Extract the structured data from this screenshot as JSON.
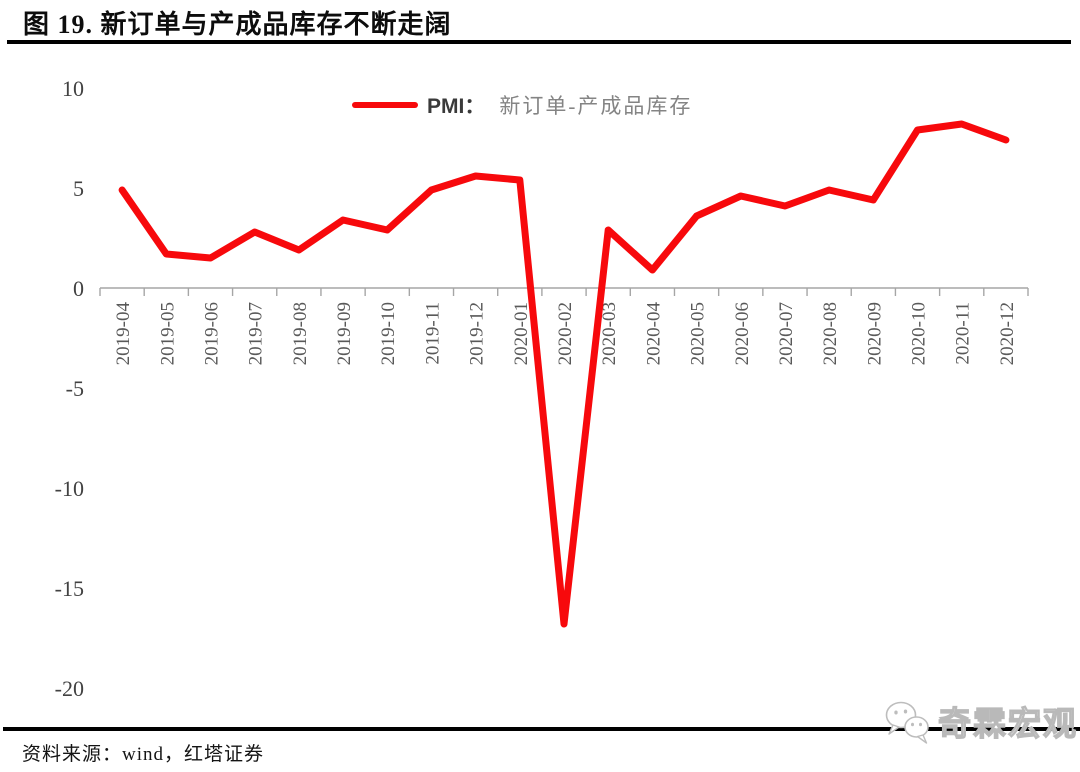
{
  "header": {
    "title": "图 19. 新订单与产成品库存不断走阔"
  },
  "legend": {
    "prefix": "PMI：",
    "series": "新订单-产成品库存"
  },
  "footer": {
    "source": "资料来源：wind，红塔证券"
  },
  "watermark": {
    "icon": "wechat-icon",
    "text": "奇霖宏观"
  },
  "chart_data": {
    "type": "line",
    "title": "图 19. 新订单与产成品库存不断走阔",
    "legend_label": "PMI：新订单-产成品库存",
    "legend_position": "top-center",
    "grid": false,
    "categories": [
      "2019-04",
      "2019-05",
      "2019-06",
      "2019-07",
      "2019-08",
      "2019-09",
      "2019-10",
      "2019-11",
      "2019-12",
      "2020-01",
      "2020-02",
      "2020-03",
      "2020-04",
      "2020-05",
      "2020-06",
      "2020-07",
      "2020-08",
      "2020-09",
      "2020-10",
      "2020-11",
      "2020-12"
    ],
    "series": [
      {
        "name": "PMI：新订单-产成品库存",
        "color": "#F7090C",
        "values": [
          4.9,
          1.7,
          1.5,
          2.8,
          1.9,
          3.4,
          2.9,
          4.9,
          5.6,
          5.4,
          -16.8,
          2.9,
          0.9,
          3.6,
          4.6,
          4.1,
          4.9,
          4.4,
          7.9,
          8.2,
          7.4
        ]
      }
    ],
    "xlabel": "",
    "ylabel": "",
    "ylim": [
      -20,
      10
    ],
    "yticks": [
      10,
      5,
      0,
      -5,
      -10,
      -15,
      -20
    ],
    "axis_color": "#A6A6A6",
    "ytick_label_color": "#424242",
    "xtick_label_color": "#595959"
  }
}
